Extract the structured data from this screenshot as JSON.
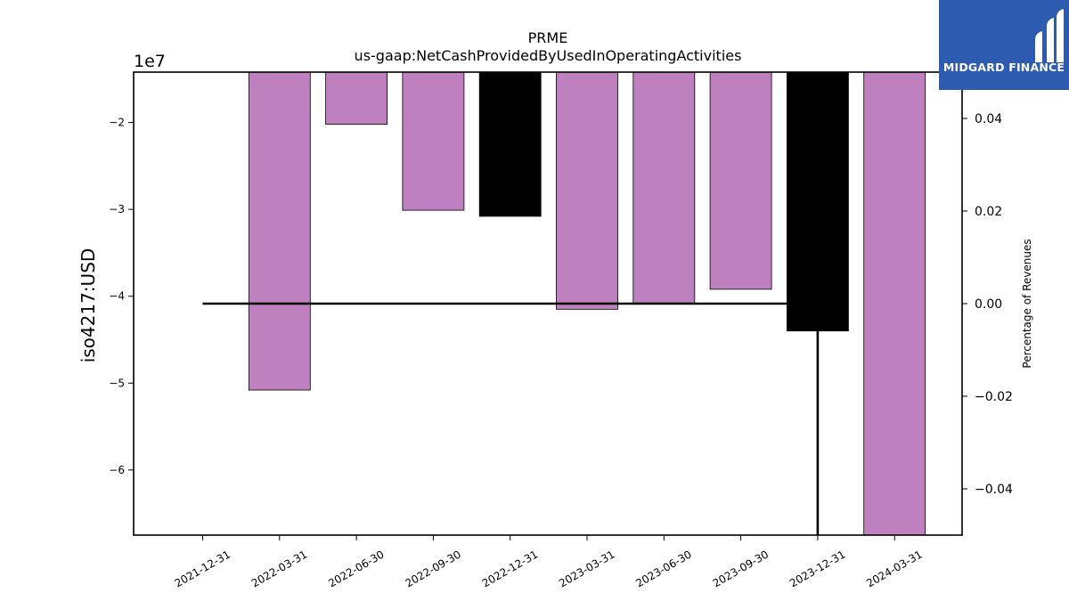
{
  "chart_data": {
    "type": "bar",
    "title": "PRME",
    "subtitle": "us-gaap:NetCashProvidedByUsedInOperatingActivities",
    "ylabel": "iso4217:USD",
    "y_offset_label": "1e7",
    "y2label": "Percentage of Revenues",
    "categories": [
      "2021-12-31",
      "2022-03-31",
      "2022-06-30",
      "2022-09-30",
      "2022-12-31",
      "2023-03-31",
      "2023-06-30",
      "2023-09-30",
      "2023-12-31",
      "2024-03-31"
    ],
    "values": [
      null,
      -50800000,
      -20200000,
      -30100000,
      -30800000,
      -41500000,
      -40800000,
      -39200000,
      -44000000,
      -67500000
    ],
    "bar_colors": [
      null,
      "#bf80bf",
      "#bf80bf",
      "#bf80bf",
      "#000000",
      "#bf80bf",
      "#bf80bf",
      "#bf80bf",
      "#000000",
      "#bf80bf"
    ],
    "ylim": [
      -67500000,
      -14200000
    ],
    "yticks": [
      -20000000,
      -30000000,
      -40000000,
      -50000000,
      -60000000
    ],
    "ytick_labels": [
      "−2",
      "−3",
      "−4",
      "−5",
      "−6"
    ],
    "y2lim": [
      -0.05,
      0.05
    ],
    "y2ticks": [
      0.04,
      0.02,
      0.0,
      -0.02,
      -0.04
    ],
    "y2tick_labels": [
      "0.04",
      "0.02",
      "0.00",
      "−0.02",
      "−0.04"
    ],
    "line_series": {
      "x": [
        "2021-12-31",
        "2022-03-31",
        "2022-06-30",
        "2022-09-30",
        "2022-12-31",
        "2023-03-31",
        "2023-06-30",
        "2023-09-30",
        "2023-12-31",
        "2023-12-31"
      ],
      "values": [
        0.0,
        0.0,
        0.0,
        0.0,
        0.0,
        0.0,
        0.0,
        0.0,
        0.0,
        -0.05
      ],
      "color": "#000000"
    },
    "grid": false
  },
  "logo": {
    "text": "MIDGARD FINANCE",
    "bg": "#2d5bb0"
  }
}
